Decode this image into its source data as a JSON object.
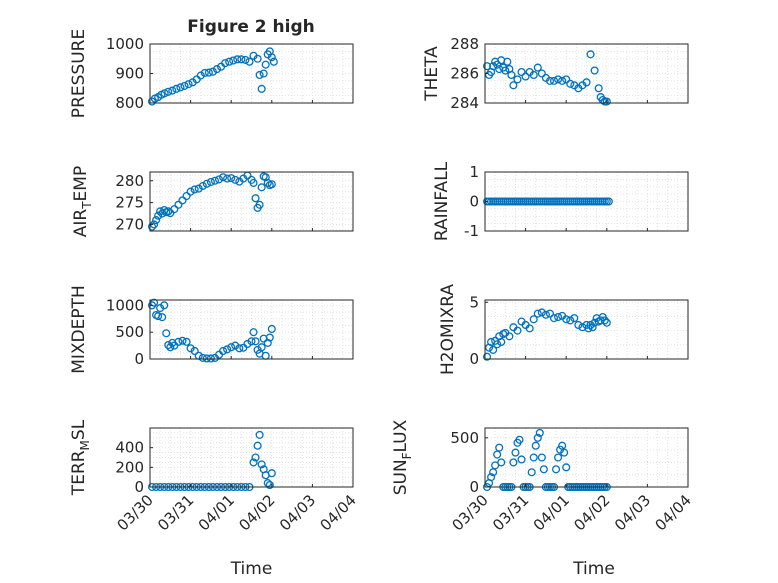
{
  "figure": {
    "title": "Figure 2 high",
    "time_label": "Time",
    "time_ticks": [
      "03/30",
      "03/31",
      "04/01",
      "04/02",
      "04/03",
      "04/04"
    ]
  },
  "colors": {
    "marker": "#0072BD",
    "axis": "#262626",
    "grid": "#dddddd",
    "background": "#ffffff"
  },
  "chart_data": [
    {
      "type": "scatter",
      "marker": "circle",
      "ylabel": "PRESSURE",
      "ylim": [
        800,
        1000
      ],
      "yticks": [
        800,
        900,
        1000
      ],
      "xlim": [
        "03/30",
        "04/04"
      ],
      "grid": true,
      "x": [
        0.05,
        0.12,
        0.2,
        0.28,
        0.36,
        0.45,
        0.55,
        0.65,
        0.75,
        0.85,
        0.95,
        1.05,
        1.15,
        1.25,
        1.35,
        1.45,
        1.55,
        1.65,
        1.75,
        1.85,
        1.95,
        2.05,
        2.15,
        2.25,
        2.35,
        2.45,
        2.55,
        2.65,
        2.7,
        2.75,
        2.8,
        2.85,
        2.9,
        2.95,
        3.0,
        3.05
      ],
      "y": [
        805,
        815,
        820,
        828,
        833,
        838,
        842,
        848,
        853,
        858,
        864,
        870,
        880,
        893,
        902,
        903,
        906,
        915,
        923,
        935,
        940,
        944,
        948,
        948,
        946,
        940,
        960,
        950,
        895,
        848,
        900,
        930,
        965,
        975,
        955,
        940
      ]
    },
    {
      "type": "scatter",
      "marker": "circle",
      "ylabel": "THETA",
      "ylim": [
        284,
        288
      ],
      "yticks": [
        284,
        286,
        288
      ],
      "xlim": [
        "03/30",
        "04/04"
      ],
      "grid": true,
      "x": [
        0.05,
        0.1,
        0.15,
        0.2,
        0.25,
        0.3,
        0.35,
        0.4,
        0.45,
        0.5,
        0.55,
        0.6,
        0.65,
        0.7,
        0.8,
        0.9,
        1.0,
        1.1,
        1.2,
        1.3,
        1.4,
        1.5,
        1.6,
        1.7,
        1.8,
        1.9,
        2.0,
        2.1,
        2.2,
        2.3,
        2.4,
        2.5,
        2.6,
        2.7,
        2.8,
        2.85,
        2.9,
        2.95,
        3.0
      ],
      "y": [
        286.5,
        285.9,
        286.1,
        286.5,
        286.8,
        286.6,
        286.3,
        286.9,
        286.4,
        286.2,
        286.8,
        286.3,
        285.9,
        285.2,
        285.6,
        286.1,
        285.8,
        286.1,
        285.9,
        286.4,
        286.0,
        285.7,
        285.5,
        285.5,
        285.6,
        285.5,
        285.6,
        285.3,
        285.2,
        285.0,
        285.2,
        285.4,
        287.3,
        286.2,
        285.0,
        284.4,
        284.2,
        284.1,
        284.1
      ]
    },
    {
      "type": "scatter",
      "marker": "circle",
      "ylabel": "AIR_T_EMP",
      "ylim": [
        268.5,
        282
      ],
      "yticks": [
        270,
        275,
        280
      ],
      "xlim": [
        "03/30",
        "04/04"
      ],
      "grid": true,
      "x": [
        0.05,
        0.1,
        0.15,
        0.2,
        0.25,
        0.3,
        0.35,
        0.4,
        0.45,
        0.5,
        0.6,
        0.7,
        0.8,
        0.9,
        1.0,
        1.1,
        1.2,
        1.3,
        1.4,
        1.5,
        1.6,
        1.7,
        1.8,
        1.9,
        2.0,
        2.1,
        2.2,
        2.3,
        2.4,
        2.5,
        2.55,
        2.6,
        2.65,
        2.7,
        2.75,
        2.8,
        2.85,
        2.9,
        2.95,
        3.0
      ],
      "y": [
        269.5,
        270.0,
        271.0,
        272.0,
        273.0,
        272.5,
        273.3,
        272.8,
        273.0,
        272.6,
        273.5,
        274.5,
        275.5,
        276.5,
        277.5,
        278.0,
        278.2,
        278.8,
        279.3,
        279.7,
        280.0,
        280.3,
        280.8,
        280.5,
        280.6,
        280.2,
        279.8,
        280.5,
        281.2,
        280.2,
        279.5,
        276.0,
        273.8,
        274.5,
        278.5,
        281.0,
        280.8,
        279.5,
        279.0,
        279.2
      ]
    },
    {
      "type": "scatter",
      "marker": "circle",
      "ylabel": "RAINFALL",
      "ylim": [
        -1,
        1
      ],
      "yticks": [
        -1,
        0,
        1
      ],
      "xlim": [
        "03/30",
        "04/04"
      ],
      "grid": true,
      "x": [
        0.05,
        0.1,
        0.15,
        0.2,
        0.25,
        0.3,
        0.35,
        0.4,
        0.45,
        0.5,
        0.55,
        0.6,
        0.65,
        0.7,
        0.75,
        0.8,
        0.85,
        0.9,
        0.95,
        1.0,
        1.05,
        1.1,
        1.15,
        1.2,
        1.25,
        1.3,
        1.35,
        1.4,
        1.45,
        1.5,
        1.55,
        1.6,
        1.65,
        1.7,
        1.75,
        1.8,
        1.85,
        1.9,
        1.95,
        2.0,
        2.05,
        2.1,
        2.15,
        2.2,
        2.25,
        2.3,
        2.35,
        2.4,
        2.45,
        2.5,
        2.55,
        2.6,
        2.65,
        2.7,
        2.75,
        2.8,
        2.85,
        2.9,
        2.95,
        3.0,
        3.05
      ],
      "y": [
        0,
        0,
        0,
        0,
        0,
        0,
        0,
        0,
        0,
        0,
        0,
        0,
        0,
        0,
        0,
        0,
        0,
        0,
        0,
        0,
        0,
        0,
        0,
        0,
        0,
        0,
        0,
        0,
        0,
        0,
        0,
        0,
        0,
        0,
        0,
        0,
        0,
        0,
        0,
        0,
        0,
        0,
        0,
        0,
        0,
        0,
        0,
        0,
        0,
        0,
        0,
        0,
        0,
        0,
        0,
        0,
        0,
        0,
        0,
        0,
        0
      ]
    },
    {
      "type": "scatter",
      "marker": "circle",
      "ylabel": "MIXDEPTH",
      "ylim": [
        0,
        1100
      ],
      "yticks": [
        0,
        500,
        1000
      ],
      "xlim": [
        "03/30",
        "04/04"
      ],
      "grid": true,
      "x": [
        0.05,
        0.1,
        0.15,
        0.2,
        0.25,
        0.3,
        0.35,
        0.4,
        0.45,
        0.5,
        0.55,
        0.6,
        0.7,
        0.8,
        0.9,
        1.0,
        1.1,
        1.2,
        1.3,
        1.4,
        1.5,
        1.6,
        1.7,
        1.8,
        1.9,
        2.0,
        2.1,
        2.2,
        2.3,
        2.4,
        2.5,
        2.55,
        2.6,
        2.65,
        2.7,
        2.75,
        2.8,
        2.85,
        2.9,
        2.95,
        3.0
      ],
      "y": [
        1000,
        1050,
        820,
        800,
        950,
        780,
        1000,
        480,
        260,
        220,
        300,
        250,
        320,
        340,
        320,
        200,
        150,
        60,
        20,
        10,
        10,
        20,
        80,
        150,
        180,
        220,
        250,
        200,
        210,
        280,
        330,
        500,
        330,
        170,
        100,
        220,
        380,
        60,
        300,
        400,
        560
      ]
    },
    {
      "type": "scatter",
      "marker": "circle",
      "ylabel": "H2OMIXRA",
      "ylim": [
        0,
        5.2
      ],
      "yticks": [
        0,
        5
      ],
      "xlim": [
        "03/30",
        "04/04"
      ],
      "grid": true,
      "x": [
        0.05,
        0.1,
        0.15,
        0.2,
        0.25,
        0.3,
        0.35,
        0.4,
        0.45,
        0.5,
        0.6,
        0.7,
        0.8,
        0.9,
        1.0,
        1.1,
        1.2,
        1.3,
        1.4,
        1.5,
        1.6,
        1.7,
        1.8,
        1.9,
        2.0,
        2.1,
        2.2,
        2.3,
        2.4,
        2.5,
        2.55,
        2.6,
        2.65,
        2.7,
        2.75,
        2.8,
        2.85,
        2.9,
        2.95,
        3.0
      ],
      "y": [
        0.2,
        1.0,
        1.5,
        0.8,
        1.6,
        1.3,
        2.0,
        1.5,
        2.2,
        2.3,
        2.0,
        2.8,
        2.5,
        3.3,
        3.0,
        2.7,
        3.5,
        4.0,
        4.1,
        3.9,
        4.0,
        3.6,
        3.7,
        3.8,
        3.5,
        3.4,
        3.6,
        3.0,
        2.8,
        3.0,
        2.7,
        3.0,
        2.8,
        3.2,
        3.6,
        3.3,
        3.4,
        3.7,
        3.4,
        3.2
      ]
    },
    {
      "type": "scatter",
      "marker": "circle",
      "ylabel": "TERR_M_SL",
      "ylim": [
        0,
        600
      ],
      "yticks": [
        0,
        200,
        400
      ],
      "xlim": [
        "03/30",
        "04/04"
      ],
      "grid": true,
      "x": [
        0.05,
        0.15,
        0.25,
        0.35,
        0.45,
        0.55,
        0.65,
        0.75,
        0.85,
        0.95,
        1.05,
        1.15,
        1.25,
        1.35,
        1.45,
        1.55,
        1.65,
        1.75,
        1.85,
        1.95,
        2.05,
        2.15,
        2.25,
        2.35,
        2.45,
        2.55,
        2.6,
        2.65,
        2.7,
        2.75,
        2.8,
        2.85,
        2.9,
        2.95,
        3.0
      ],
      "y": [
        0,
        0,
        0,
        0,
        0,
        0,
        0,
        0,
        0,
        0,
        0,
        0,
        0,
        0,
        0,
        0,
        0,
        0,
        0,
        0,
        0,
        0,
        0,
        0,
        0,
        250,
        300,
        420,
        530,
        230,
        180,
        120,
        40,
        20,
        140
      ]
    },
    {
      "type": "scatter",
      "marker": "circle",
      "ylabel": "SUN_F_LUX",
      "ylim": [
        0,
        600
      ],
      "yticks": [
        0,
        500
      ],
      "xlim": [
        "03/30",
        "04/04"
      ],
      "grid": true,
      "x": [
        0.05,
        0.1,
        0.15,
        0.2,
        0.25,
        0.3,
        0.35,
        0.4,
        0.45,
        0.5,
        0.55,
        0.6,
        0.65,
        0.7,
        0.75,
        0.8,
        0.85,
        0.9,
        0.95,
        1.0,
        1.05,
        1.1,
        1.15,
        1.2,
        1.25,
        1.3,
        1.35,
        1.4,
        1.45,
        1.5,
        1.55,
        1.6,
        1.65,
        1.7,
        1.75,
        1.8,
        1.85,
        1.9,
        1.95,
        2.0,
        2.05,
        2.1,
        2.15,
        2.2,
        2.25,
        2.3,
        2.35,
        2.4,
        2.45,
        2.5,
        2.55,
        2.6,
        2.65,
        2.7,
        2.75,
        2.8,
        2.85,
        2.9,
        2.95,
        3.0
      ],
      "y": [
        0,
        40,
        100,
        150,
        220,
        330,
        400,
        250,
        0,
        0,
        0,
        0,
        0,
        250,
        350,
        450,
        480,
        280,
        0,
        0,
        0,
        0,
        150,
        300,
        420,
        500,
        550,
        300,
        180,
        0,
        0,
        0,
        0,
        0,
        180,
        300,
        380,
        420,
        350,
        200,
        0,
        0,
        0,
        0,
        0,
        0,
        0,
        0,
        0,
        0,
        0,
        0,
        0,
        0,
        0,
        0,
        0,
        0,
        0,
        0
      ]
    }
  ]
}
